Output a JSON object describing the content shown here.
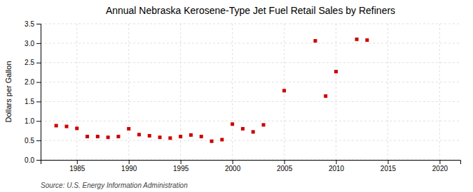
{
  "chart_data": {
    "type": "scatter",
    "title": "Annual Nebraska Kerosene-Type Jet Fuel Retail Sales by Refiners",
    "ylabel": "Dollars per Gallon",
    "annotations": [
      "Source: U.S. Energy Information Administration"
    ],
    "x": [
      1983,
      1984,
      1985,
      1986,
      1987,
      1988,
      1989,
      1990,
      1991,
      1992,
      1993,
      1994,
      1995,
      1996,
      1997,
      1998,
      1999,
      2000,
      2001,
      2002,
      2003,
      2005,
      2008,
      2009,
      2010,
      2012,
      2013
    ],
    "values": [
      0.88,
      0.86,
      0.81,
      0.6,
      0.6,
      0.58,
      0.6,
      0.8,
      0.65,
      0.62,
      0.58,
      0.56,
      0.6,
      0.64,
      0.6,
      0.48,
      0.52,
      0.92,
      0.8,
      0.72,
      0.9,
      1.78,
      3.06,
      1.64,
      2.27,
      3.1,
      3.08
    ],
    "color": "#cc0000",
    "marker": "square",
    "xlim": [
      1981.5,
      2022
    ],
    "ylim": [
      0.0,
      3.5
    ],
    "xticks": [
      1985,
      1990,
      1995,
      2000,
      2005,
      2010,
      2015,
      2020
    ],
    "yticks": [
      {
        "value": 0,
        "label": "0.0"
      },
      0.5,
      {
        "value": 1,
        "label": "1.0"
      },
      1.5,
      {
        "value": 2,
        "label": "2.0"
      },
      2.5,
      {
        "value": 3,
        "label": "3.0"
      },
      3.5
    ],
    "grid": true
  }
}
